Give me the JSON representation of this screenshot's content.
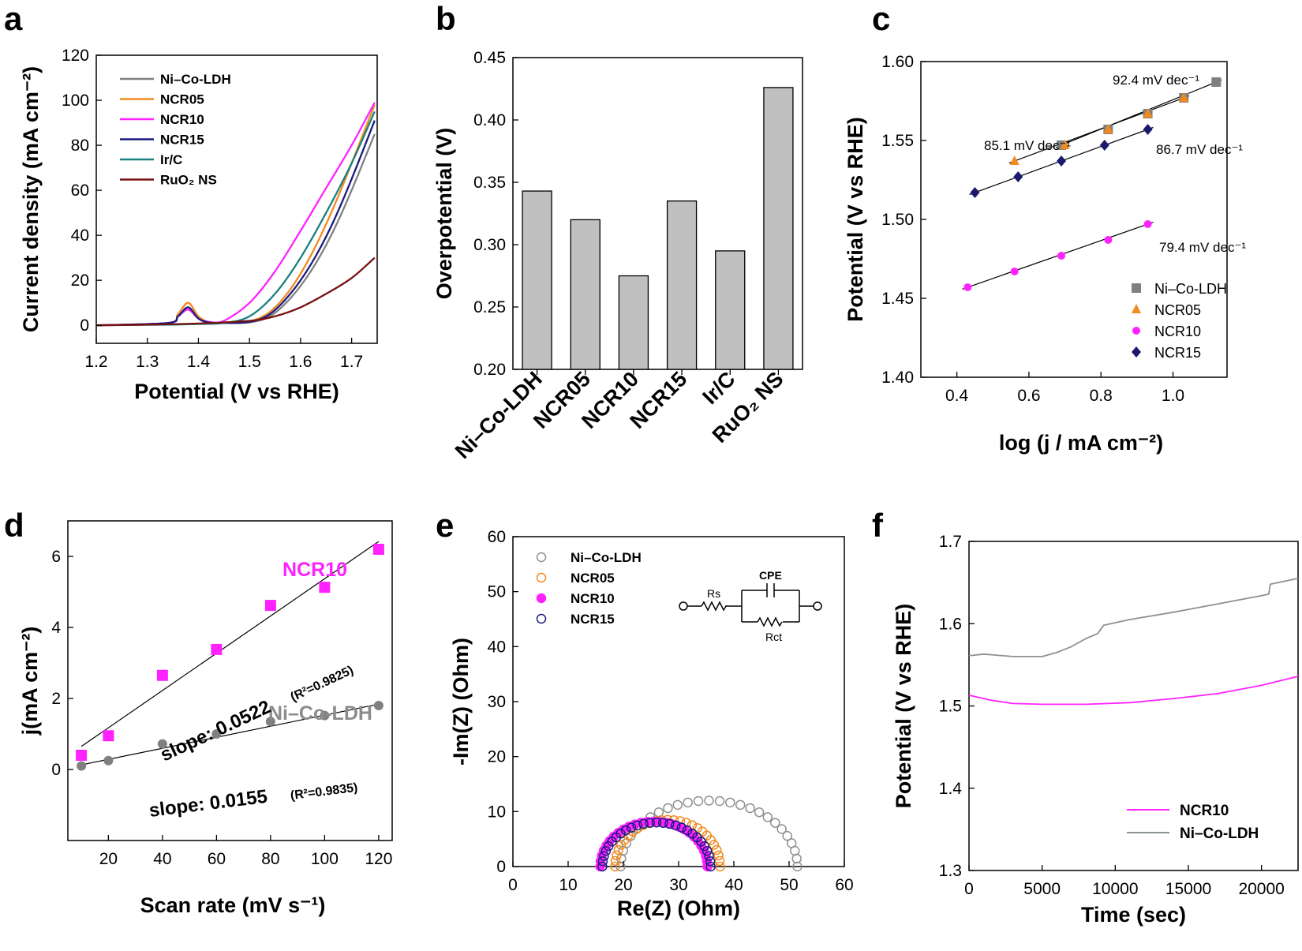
{
  "chart_data": [
    {
      "panel": "a",
      "type": "line",
      "xlabel": "Potential (V vs RHE)",
      "ylabel": "Current density (mA cm⁻²)",
      "xlim": [
        1.2,
        1.75
      ],
      "ylim": [
        -8,
        120
      ],
      "xticks": [
        "1.2",
        "1.3",
        "1.4",
        "1.5",
        "1.6",
        "1.7"
      ],
      "yticks": [
        "0",
        "20",
        "40",
        "60",
        "80",
        "100",
        "120"
      ],
      "series": [
        {
          "name": "Ni–Co-LDH",
          "color": "#808080",
          "x": [
            1.2,
            1.34,
            1.36,
            1.38,
            1.4,
            1.42,
            1.45,
            1.5,
            1.54,
            1.58,
            1.62,
            1.66,
            1.7,
            1.745
          ],
          "y": [
            0,
            1,
            4,
            7,
            3,
            1.2,
            1,
            1.3,
            4,
            12,
            24,
            40,
            60,
            85
          ]
        },
        {
          "name": "NCR05",
          "color": "#f28a1e",
          "x": [
            1.2,
            1.34,
            1.36,
            1.38,
            1.4,
            1.42,
            1.45,
            1.5,
            1.54,
            1.58,
            1.62,
            1.66,
            1.7,
            1.745
          ],
          "y": [
            0,
            1,
            5,
            10,
            4,
            1.5,
            1.2,
            1.8,
            6,
            16,
            31,
            50,
            72,
            98
          ]
        },
        {
          "name": "NCR10",
          "color": "#ff22ff",
          "x": [
            1.2,
            1.34,
            1.36,
            1.38,
            1.4,
            1.42,
            1.45,
            1.5,
            1.55,
            1.6,
            1.65,
            1.7,
            1.745
          ],
          "y": [
            0,
            1,
            4,
            7,
            3,
            1.5,
            2,
            10,
            24,
            42,
            61,
            80,
            99
          ]
        },
        {
          "name": "NCR15",
          "color": "#1a1a80",
          "x": [
            1.2,
            1.34,
            1.36,
            1.38,
            1.4,
            1.42,
            1.45,
            1.5,
            1.54,
            1.58,
            1.62,
            1.66,
            1.7,
            1.745
          ],
          "y": [
            0,
            1,
            4,
            8,
            3,
            1.3,
            1,
            1.5,
            5,
            14,
            27,
            44,
            65,
            91
          ]
        },
        {
          "name": "Ir/C",
          "color": "#1a8080",
          "x": [
            1.2,
            1.35,
            1.4,
            1.45,
            1.5,
            1.55,
            1.6,
            1.65,
            1.7,
            1.745
          ],
          "y": [
            0,
            0.3,
            0.6,
            1,
            4,
            14,
            30,
            50,
            72,
            95
          ]
        },
        {
          "name": "RuO₂ NS",
          "color": "#7a1010",
          "x": [
            1.2,
            1.3,
            1.4,
            1.5,
            1.55,
            1.6,
            1.65,
            1.7,
            1.745
          ],
          "y": [
            0,
            0.3,
            0.8,
            2,
            4,
            8,
            14,
            21,
            30
          ]
        }
      ]
    },
    {
      "panel": "b",
      "type": "bar",
      "ylabel": "Overpotential (V)",
      "categories": [
        "Ni–Co-LDH",
        "NCR05",
        "NCR10",
        "NCR15",
        "Ir/C",
        "RuO₂ NS"
      ],
      "values": [
        0.343,
        0.32,
        0.275,
        0.335,
        0.295,
        0.426
      ],
      "ylim": [
        0.2,
        0.45
      ],
      "yticks": [
        "0.20",
        "0.25",
        "0.30",
        "0.35",
        "0.40",
        "0.45"
      ],
      "bar_color": "#c0c0c0"
    },
    {
      "panel": "c",
      "type": "scatter",
      "xlabel": "log (j / mA cm⁻²)",
      "ylabel": "Potential (V vs RHE)",
      "xlim": [
        0.3,
        1.15
      ],
      "ylim": [
        1.4,
        1.6
      ],
      "xticks": [
        "0.4",
        "0.6",
        "0.8",
        "1.0"
      ],
      "yticks": [
        "1.40",
        "1.45",
        "1.50",
        "1.55",
        "1.60"
      ],
      "series": [
        {
          "name": "Ni–Co-LDH",
          "marker": "square",
          "color": "#808080",
          "x": [
            0.69,
            0.82,
            0.93,
            1.03,
            1.12
          ],
          "y": [
            1.547,
            1.557,
            1.567,
            1.577,
            1.587
          ]
        },
        {
          "name": "NCR05",
          "marker": "triangle",
          "color": "#f28a1e",
          "x": [
            0.56,
            0.7,
            0.82,
            0.93,
            1.03
          ],
          "y": [
            1.537,
            1.547,
            1.557,
            1.567,
            1.577
          ]
        },
        {
          "name": "NCR10",
          "marker": "circle",
          "color": "#ff22ff",
          "x": [
            0.43,
            0.56,
            0.69,
            0.82,
            0.93
          ],
          "y": [
            1.457,
            1.467,
            1.477,
            1.487,
            1.497
          ]
        },
        {
          "name": "NCR15",
          "marker": "diamond",
          "color": "#1a1a6e",
          "x": [
            0.45,
            0.57,
            0.69,
            0.81,
            0.93
          ],
          "y": [
            1.517,
            1.527,
            1.537,
            1.547,
            1.557
          ]
        }
      ],
      "annotations": [
        "92.4 mV dec⁻¹",
        "85.1 mV dec⁻¹",
        "86.7 mV dec⁻¹",
        "79.4 mV dec⁻¹"
      ]
    },
    {
      "panel": "d",
      "type": "scatter",
      "xlabel": "Scan rate (mV s⁻¹)",
      "ylabel": "j(mA cm⁻²)",
      "xlim": [
        5,
        125
      ],
      "ylim": [
        -2,
        7
      ],
      "xticks": [
        "20",
        "40",
        "60",
        "80",
        "100",
        "120"
      ],
      "yticks": [
        "0",
        "2",
        "4",
        "6"
      ],
      "series": [
        {
          "name": "NCR10",
          "marker": "square",
          "color": "#ff22ff",
          "x": [
            10,
            20,
            40,
            60,
            80,
            100,
            120
          ],
          "y": [
            0.4,
            0.95,
            2.65,
            3.38,
            4.62,
            5.13,
            6.2
          ],
          "fit": [
            [
              10,
              0.65
            ],
            [
              120,
              6.42
            ]
          ]
        },
        {
          "name": "Ni–Co-LDH",
          "marker": "circle",
          "color": "#808080",
          "x": [
            10,
            20,
            40,
            60,
            80,
            100,
            120
          ],
          "y": [
            0.1,
            0.25,
            0.72,
            1.0,
            1.35,
            1.52,
            1.8
          ],
          "fit": [
            [
              10,
              0.13
            ],
            [
              120,
              1.84
            ]
          ]
        }
      ],
      "labels": {
        "ncr10": "NCR10",
        "nico": "Ni–Co-LDH"
      },
      "slope_ncr10": "slope: 0.0522",
      "r2_ncr10": "(R²=0.9825)",
      "slope_nico": "slope: 0.0155",
      "r2_nico": "(R²=0.9835)"
    },
    {
      "panel": "e",
      "type": "scatter",
      "xlabel": "Re(Z) (Ohm)",
      "ylabel": "-Im(Z) (Ohm)",
      "xlim": [
        0,
        60
      ],
      "ylim": [
        0,
        60
      ],
      "xticks": [
        "0",
        "10",
        "20",
        "30",
        "40",
        "50",
        "60"
      ],
      "yticks": [
        "0",
        "10",
        "20",
        "30",
        "40",
        "50",
        "60"
      ],
      "series": [
        {
          "name": "Ni–Co-LDH",
          "marker": "open-circle",
          "color": "#909090",
          "semicircle": {
            "start": 19.5,
            "end": 51.5,
            "peak": 12
          }
        },
        {
          "name": "NCR05",
          "marker": "open-circle",
          "color": "#f28a1e",
          "semicircle": {
            "start": 18.5,
            "end": 37.5,
            "peak": 8.5
          }
        },
        {
          "name": "NCR10",
          "marker": "filled-circle",
          "color": "#ff22ff",
          "semicircle": {
            "start": 15.8,
            "end": 35.2,
            "peak": 8.2
          }
        },
        {
          "name": "NCR15",
          "marker": "open-circle",
          "color": "#1a1a80",
          "semicircle": {
            "start": 16.2,
            "end": 35.8,
            "peak": 8.0
          }
        }
      ],
      "circuit": {
        "cpe": "CPE",
        "rs": "Rs",
        "rct": "Rct"
      }
    },
    {
      "panel": "f",
      "type": "line",
      "xlabel": "Time (sec)",
      "ylabel": "Potential (V vs RHE)",
      "xlim": [
        0,
        22500
      ],
      "ylim": [
        1.3,
        1.7
      ],
      "xticks": [
        "0",
        "5000",
        "10000",
        "15000",
        "20000"
      ],
      "yticks": [
        "1.3",
        "1.4",
        "1.5",
        "1.6",
        "1.7"
      ],
      "series": [
        {
          "name": "NCR10",
          "color": "#ff22ff",
          "x": [
            0,
            1500,
            3000,
            5000,
            8000,
            11000,
            14000,
            17000,
            20000,
            22500
          ],
          "y": [
            1.513,
            1.507,
            1.503,
            1.502,
            1.502,
            1.504,
            1.509,
            1.515,
            1.525,
            1.536
          ]
        },
        {
          "name": "Ni–Co-LDH",
          "color": "#8a948a",
          "x": [
            0,
            1000,
            3000,
            5000,
            6000,
            7000,
            8000,
            8800,
            9200,
            11000,
            14000,
            17000,
            20000,
            20500,
            20600,
            22500
          ],
          "y": [
            1.561,
            1.563,
            1.56,
            1.56,
            1.565,
            1.572,
            1.582,
            1.588,
            1.598,
            1.605,
            1.614,
            1.624,
            1.634,
            1.636,
            1.648,
            1.655
          ]
        }
      ]
    }
  ]
}
